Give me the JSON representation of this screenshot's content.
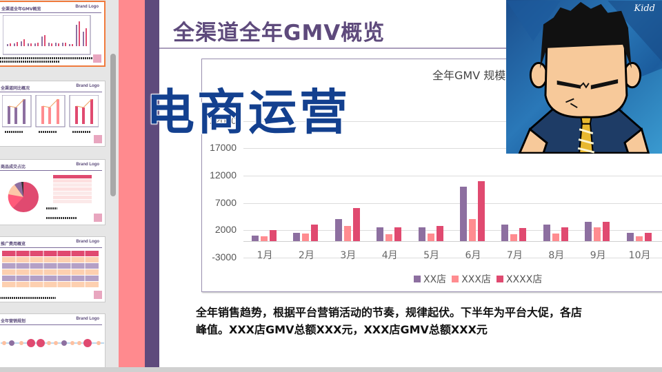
{
  "thumbnails": [
    {
      "title": "全渠道全年GMV概览",
      "logo": "Brand Logo",
      "active": true
    },
    {
      "title": "全渠道同比概况",
      "logo": "Brand Logo",
      "active": false
    },
    {
      "title": "商品成交占比",
      "logo": "Brand Logo",
      "active": false
    },
    {
      "title": "推广费用概览",
      "logo": "Brand Logo",
      "active": false
    },
    {
      "title": "全年营销规划",
      "logo": "Brand Logo",
      "active": false
    }
  ],
  "slide": {
    "title": "全渠道全年GMV概览",
    "description_line1": "全年销售趋势，根据平台营销活动的节奏，规律起伏。下半年为平台大促，各店",
    "description_line2": "峰值。XXX店GMV总额XXX元，XXX店GMV总额XXX元"
  },
  "overlay": {
    "title": "电商运营",
    "avatar_signature": "Kidd"
  },
  "colors": {
    "pink_stripe": "#ff8a8e",
    "purple_stripe": "#5e4a7c",
    "overlay_text": "#13408f",
    "series_xx": "#8d6fa0",
    "series_xxx": "#ff8c90",
    "series_xxxx": "#e04a70",
    "active_thumb_border": "#f07a3c"
  },
  "chart_data": {
    "type": "bar",
    "title": "全年GMV 规模",
    "xlabel": "",
    "ylabel": "",
    "ylim": [
      -3000,
      22000
    ],
    "yticks": [
      "22000",
      "17000",
      "12000",
      "7000",
      "2000",
      "-3000"
    ],
    "categories": [
      "1月",
      "2月",
      "3月",
      "4月",
      "5月",
      "6月",
      "7月",
      "8月",
      "9月",
      "10月"
    ],
    "series": [
      {
        "name": "XX店",
        "color": "#8d6fa0",
        "values": [
          1000,
          1500,
          4000,
          2500,
          2500,
          10000,
          3000,
          3000,
          3500,
          1500
        ]
      },
      {
        "name": "XXX店",
        "color": "#ff8c90",
        "values": [
          900,
          1400,
          2800,
          1300,
          1400,
          4000,
          1300,
          1400,
          2500,
          900
        ]
      },
      {
        "name": "XXXX店",
        "color": "#e04a70",
        "values": [
          2000,
          3000,
          6000,
          2500,
          2800,
          11000,
          2400,
          2500,
          3500,
          1500
        ]
      }
    ],
    "legend_position": "bottom",
    "grid": true
  }
}
